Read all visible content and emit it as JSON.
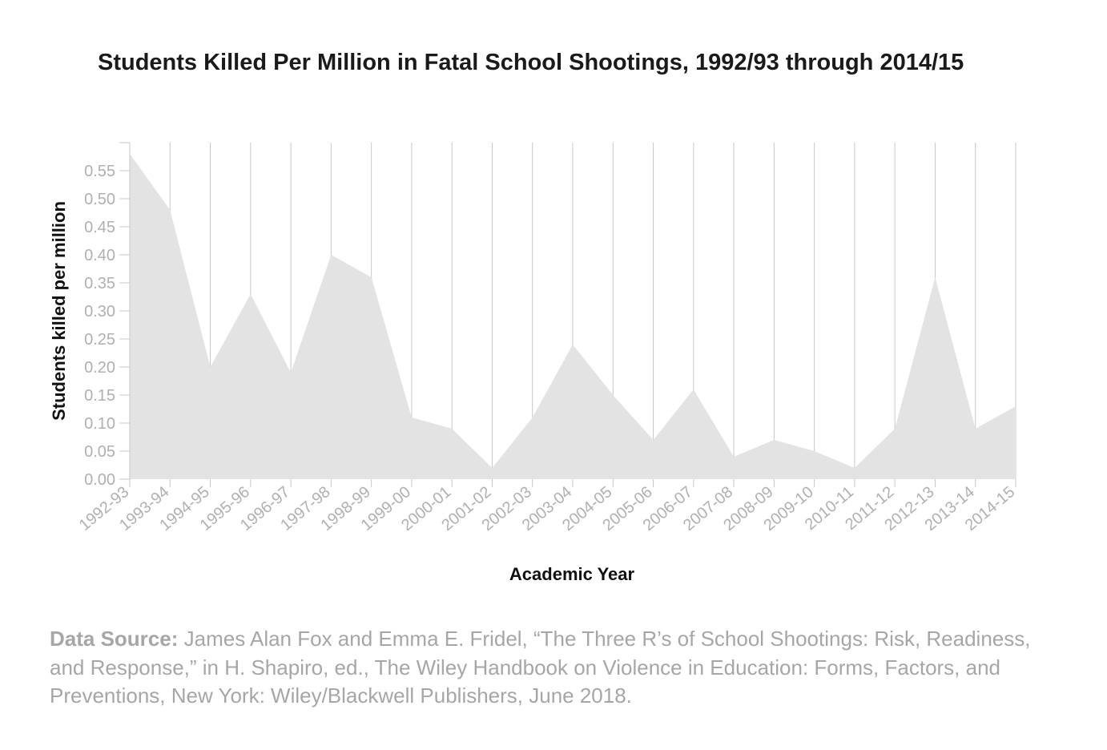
{
  "chart_data": {
    "type": "area",
    "title": "Students Killed Per Million in Fatal School Shootings, 1992/93 through 2014/15",
    "xlabel": "Academic Year",
    "ylabel": "Students killed per million",
    "categories": [
      "1992-93",
      "1993-94",
      "1994-95",
      "1995-96",
      "1996-97",
      "1997-98",
      "1998-99",
      "1999-00",
      "2000-01",
      "2001-02",
      "2002-03",
      "2003-04",
      "2004-05",
      "2005-06",
      "2006-07",
      "2007-08",
      "2008-09",
      "2009-10",
      "2010-11",
      "2011-12",
      "2012-13",
      "2013-14",
      "2014-15"
    ],
    "values": [
      0.58,
      0.48,
      0.2,
      0.33,
      0.19,
      0.4,
      0.36,
      0.11,
      0.09,
      0.02,
      0.11,
      0.24,
      0.15,
      0.07,
      0.16,
      0.04,
      0.07,
      0.05,
      0.02,
      0.09,
      0.36,
      0.09,
      0.13
    ],
    "yticks": [
      "0.00",
      "0.05",
      "0.10",
      "0.15",
      "0.20",
      "0.25",
      "0.30",
      "0.35",
      "0.40",
      "0.45",
      "0.50",
      "0.55"
    ],
    "ylim": [
      0,
      0.6
    ],
    "grid": true,
    "area_color": "#e3e3e3",
    "grid_color": "#c8c8c8",
    "tick_label_color": "#b0b0b0"
  },
  "source": {
    "label": "Data Source:",
    "text": " James Alan Fox and Emma E. Fridel, “The Three R’s of School Shootings: Risk, Readiness, and Response,” in H. Shapiro, ed., The Wiley Handbook on Violence in Education: Forms, Factors, and Preventions, New York: Wiley/Blackwell Publishers, June 2018."
  }
}
